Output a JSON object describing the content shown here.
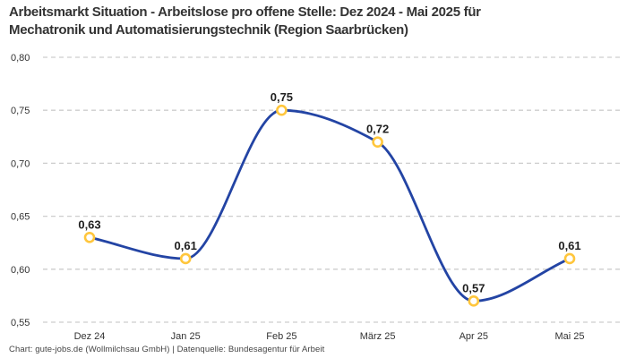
{
  "title": {
    "line1": "Arbeitsmarkt Situation - Arbeitslose pro offene Stelle: Dez 2024 - Mai 2025 für",
    "line2": "Mechatronik und Automatisierungstechnik (Region Saarbrücken)"
  },
  "chart_data": {
    "type": "line",
    "title": "Arbeitsmarkt Situation - Arbeitslose pro offene Stelle: Dez 2024 - Mai 2025 für Mechatronik und Automatisierungstechnik (Region Saarbrücken)",
    "x": [
      "Dez 24",
      "Jan 25",
      "Feb 25",
      "März 25",
      "Apr 25",
      "Mai 25"
    ],
    "series": [
      {
        "name": "Arbeitslose pro offene Stelle",
        "values": [
          0.63,
          0.61,
          0.75,
          0.72,
          0.57,
          0.61
        ]
      }
    ],
    "point_labels": [
      "0,63",
      "0,61",
      "0,75",
      "0,72",
      "0,57",
      "0,61"
    ],
    "xlabel": "",
    "ylabel": "",
    "ylim": [
      0.55,
      0.8
    ],
    "yticks": [
      0.55,
      0.6,
      0.65,
      0.7,
      0.75,
      0.8
    ],
    "ytick_labels": [
      "0,55",
      "0,60",
      "0,65",
      "0,70",
      "0,75",
      "0,80"
    ],
    "grid": "horizontal-dashed",
    "legend": "none",
    "curve": "monotone-smooth",
    "line_color": "#2344A4",
    "marker_ring_color": "#FFC63C",
    "marker_fill_color": "#FFFFFF",
    "grid_color": "#CDCDCD",
    "tick_label_color": "#333333",
    "point_label_color": "#1F1F1F"
  },
  "footer": {
    "text": "Chart: gute-jobs.de (Wollmilchsau GmbH) | Datenquelle: Bundesagentur für Arbeit"
  }
}
